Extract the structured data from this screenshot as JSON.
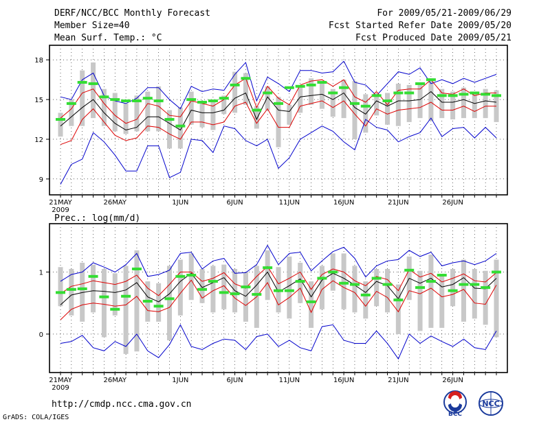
{
  "header": {
    "title": "DERF/NCC/BCC Monthly Forecast",
    "member_size": "Member Size=40",
    "variable": "Mean Surf. Temp.: °C",
    "period": "For 2009/05/21-2009/06/29",
    "started": "Fcst Started Refer Date 2009/05/20",
    "produced": "Fcst Produced Date 2009/05/21"
  },
  "footer": {
    "url": "http://cmdp.ncc.cma.gov.cn",
    "grads": "GrADS: COLA/IGES",
    "logo_bcc": "BCC",
    "logo_ncc": "NCC"
  },
  "colors": {
    "blue": "#0000cc",
    "red": "#dd0000",
    "black": "#000000",
    "box": "#c8c8c8",
    "green": "#33dd33"
  },
  "chart_data": [
    {
      "type": "line",
      "title": "Mean Surf. Temp.: °C",
      "xlabel": "",
      "ylabel": "°C",
      "xlim": [
        0,
        40
      ],
      "ylim": [
        7.8,
        19.1
      ],
      "yticks": [
        9,
        12,
        15,
        18
      ],
      "xtick_labels": [
        {
          "i": 0,
          "label": "21MAY",
          "sub": "2009"
        },
        {
          "i": 5,
          "label": "26MAY"
        },
        {
          "i": 11,
          "label": "1JUN"
        },
        {
          "i": 16,
          "label": "6JUN"
        },
        {
          "i": 21,
          "label": "11JUN"
        },
        {
          "i": 26,
          "label": "16JUN"
        },
        {
          "i": 31,
          "label": "21JUN"
        },
        {
          "i": 36,
          "label": "26JUN"
        }
      ],
      "series": [
        {
          "name": "max",
          "color": "blue",
          "values": [
            15.2,
            15.0,
            16.5,
            17.0,
            15.3,
            14.9,
            14.7,
            15.1,
            15.9,
            15.9,
            15.0,
            14.3,
            16.0,
            15.6,
            15.8,
            15.7,
            16.9,
            17.8,
            14.9,
            16.7,
            16.2,
            15.6,
            17.2,
            17.2,
            17.0,
            17.1,
            17.9,
            16.3,
            16.1,
            15.3,
            16.2,
            17.1,
            16.9,
            17.4,
            16.2,
            16.5,
            16.2,
            16.6,
            16.3,
            16.6,
            16.9
          ]
        },
        {
          "name": "upper",
          "color": "red",
          "values": [
            13.6,
            14.3,
            15.5,
            15.8,
            14.7,
            13.8,
            13.2,
            13.5,
            14.7,
            14.5,
            13.8,
            13.7,
            14.9,
            14.7,
            14.5,
            15.0,
            16.1,
            16.6,
            14.4,
            16.0,
            15.1,
            14.6,
            16.1,
            16.4,
            16.5,
            16.0,
            16.5,
            15.2,
            14.8,
            15.6,
            14.6,
            15.7,
            15.8,
            15.8,
            16.5,
            15.5,
            15.4,
            15.8,
            15.3,
            15.5,
            15.5
          ]
        },
        {
          "name": "mean",
          "color": "black",
          "values": [
            13.0,
            13.7,
            14.4,
            15.0,
            14.0,
            13.2,
            12.7,
            12.9,
            13.7,
            13.7,
            13.2,
            12.7,
            14.2,
            14.0,
            14.0,
            14.2,
            15.1,
            15.5,
            13.5,
            15.2,
            14.2,
            14.1,
            15.2,
            15.3,
            15.4,
            15.0,
            15.5,
            14.4,
            13.9,
            14.9,
            14.5,
            14.9,
            14.9,
            15.0,
            15.6,
            14.8,
            14.8,
            15.0,
            14.7,
            14.9,
            14.8
          ]
        },
        {
          "name": "lower",
          "color": "red",
          "values": [
            11.6,
            11.9,
            13.5,
            14.3,
            13.3,
            12.3,
            11.9,
            12.1,
            13.0,
            12.9,
            12.4,
            12.0,
            13.3,
            13.3,
            13.1,
            13.3,
            14.5,
            14.8,
            13.2,
            14.3,
            12.9,
            12.9,
            14.5,
            14.7,
            14.9,
            14.4,
            14.9,
            13.9,
            13.0,
            14.3,
            13.9,
            14.2,
            14.3,
            14.4,
            14.8,
            14.2,
            14.2,
            14.5,
            14.1,
            14.5,
            14.5
          ]
        },
        {
          "name": "min",
          "color": "blue",
          "values": [
            8.6,
            10.1,
            10.5,
            12.5,
            11.8,
            10.8,
            9.6,
            9.6,
            11.5,
            11.5,
            9.1,
            9.5,
            12.0,
            11.9,
            11.0,
            13.0,
            12.8,
            11.9,
            11.5,
            12.0,
            9.8,
            10.6,
            12.0,
            12.5,
            13.0,
            12.6,
            11.8,
            11.2,
            13.5,
            12.9,
            12.7,
            11.8,
            12.2,
            12.5,
            13.6,
            12.2,
            12.8,
            12.9,
            12.1,
            12.9,
            12.1
          ]
        }
      ],
      "boxes": {
        "low": [
          12.2,
          13.0,
          13.0,
          13.6,
          13.0,
          12.6,
          12.4,
          12.6,
          12.6,
          12.6,
          11.3,
          11.3,
          13.1,
          12.9,
          12.7,
          13.9,
          14.0,
          14.6,
          12.8,
          14.2,
          11.4,
          13.1,
          14.0,
          14.6,
          14.3,
          13.7,
          13.6,
          12.0,
          12.5,
          13.8,
          13.1,
          13.0,
          13.3,
          13.6,
          13.4,
          13.6,
          13.5,
          13.6,
          13.6,
          13.6,
          13.3
        ],
        "high": [
          14.0,
          15.0,
          17.2,
          17.8,
          15.8,
          15.5,
          14.7,
          15.3,
          15.6,
          16.0,
          14.2,
          14.4,
          15.6,
          14.9,
          14.9,
          15.3,
          17.1,
          17.0,
          14.5,
          16.0,
          15.2,
          14.6,
          16.0,
          16.6,
          16.3,
          15.8,
          16.5,
          16.4,
          15.4,
          15.3,
          15.5,
          16.2,
          16.1,
          16.2,
          16.6,
          15.8,
          15.6,
          15.9,
          15.5,
          15.8,
          15.7
        ]
      },
      "markers": [
        13.5,
        14.7,
        16.3,
        16.2,
        15.2,
        15.0,
        14.9,
        14.9,
        15.1,
        14.9,
        13.5,
        13.0,
        15.0,
        14.8,
        14.9,
        15.1,
        16.1,
        16.6,
        14.2,
        15.5,
        14.7,
        15.9,
        16.0,
        16.1,
        16.3,
        15.5,
        15.9,
        14.7,
        14.5,
        15.3,
        14.9,
        15.5,
        15.5,
        16.2,
        16.5,
        15.3,
        15.3,
        15.4,
        15.5,
        15.4,
        15.3
      ]
    },
    {
      "type": "line",
      "title": "Prec.: log(mm/d)",
      "xlabel": "",
      "ylabel": "log(mm/d)",
      "xlim": [
        0,
        40
      ],
      "ylim": [
        -0.62,
        1.78
      ],
      "yticks": [
        0,
        1
      ],
      "xtick_labels": [
        {
          "i": 0,
          "label": "21MAY",
          "sub": "2009"
        },
        {
          "i": 5,
          "label": "26MAY"
        },
        {
          "i": 11,
          "label": "1JUN"
        },
        {
          "i": 16,
          "label": "6JUN"
        },
        {
          "i": 21,
          "label": "11JUN"
        },
        {
          "i": 26,
          "label": "16JUN"
        },
        {
          "i": 31,
          "label": "21JUN"
        },
        {
          "i": 36,
          "label": "26JUN"
        }
      ],
      "series": [
        {
          "name": "max",
          "color": "blue",
          "values": [
            0.85,
            0.96,
            1.0,
            1.15,
            1.08,
            1.0,
            1.12,
            1.3,
            0.93,
            0.96,
            1.03,
            1.3,
            1.32,
            1.05,
            1.18,
            1.22,
            0.98,
            0.99,
            1.12,
            1.43,
            1.12,
            1.3,
            1.32,
            1.02,
            1.18,
            1.33,
            1.4,
            1.22,
            0.92,
            1.1,
            1.18,
            1.2,
            1.35,
            1.25,
            1.32,
            1.1,
            1.15,
            1.18,
            1.12,
            1.18,
            1.3
          ]
        },
        {
          "name": "upper",
          "color": "red",
          "values": [
            0.65,
            0.77,
            0.81,
            0.86,
            0.83,
            0.8,
            0.85,
            0.95,
            0.74,
            0.62,
            0.8,
            1.0,
            1.0,
            0.85,
            0.9,
            0.99,
            0.81,
            0.74,
            0.93,
            1.09,
            0.81,
            0.9,
            1.0,
            0.72,
            0.96,
            1.05,
            1.0,
            0.86,
            0.78,
            0.93,
            0.88,
            0.7,
            1.04,
            0.92,
            0.98,
            0.84,
            0.9,
            0.97,
            0.86,
            0.84,
            0.99
          ]
        },
        {
          "name": "mean",
          "color": "black",
          "values": [
            0.47,
            0.63,
            0.67,
            0.7,
            0.69,
            0.67,
            0.71,
            0.83,
            0.6,
            0.52,
            0.65,
            0.85,
            0.98,
            0.75,
            0.83,
            0.91,
            0.7,
            0.61,
            0.79,
            1.0,
            0.68,
            0.78,
            0.89,
            0.6,
            0.87,
            0.98,
            0.9,
            0.79,
            0.67,
            0.85,
            0.78,
            0.57,
            0.9,
            0.82,
            0.9,
            0.76,
            0.8,
            0.91,
            0.74,
            0.73,
            0.9
          ]
        },
        {
          "name": "lower",
          "color": "red",
          "values": [
            0.23,
            0.4,
            0.47,
            0.5,
            0.48,
            0.45,
            0.47,
            0.61,
            0.38,
            0.36,
            0.43,
            0.66,
            0.87,
            0.58,
            0.7,
            0.78,
            0.58,
            0.46,
            0.6,
            0.83,
            0.47,
            0.59,
            0.74,
            0.35,
            0.72,
            0.86,
            0.75,
            0.67,
            0.45,
            0.69,
            0.59,
            0.36,
            0.7,
            0.65,
            0.74,
            0.6,
            0.64,
            0.72,
            0.5,
            0.48,
            0.79
          ]
        },
        {
          "name": "min",
          "color": "blue",
          "values": [
            -0.15,
            -0.12,
            -0.02,
            -0.22,
            -0.27,
            -0.12,
            -0.2,
            0.0,
            -0.27,
            -0.38,
            -0.17,
            0.15,
            -0.2,
            -0.25,
            -0.15,
            -0.08,
            -0.1,
            -0.25,
            -0.04,
            0.0,
            -0.2,
            -0.1,
            -0.22,
            -0.27,
            0.12,
            0.15,
            -0.1,
            -0.15,
            -0.15,
            0.05,
            -0.15,
            -0.4,
            0.0,
            -0.15,
            -0.03,
            -0.12,
            -0.2,
            -0.08,
            -0.22,
            -0.25,
            0.05
          ]
        },
        {
          "name": "_spare",
          "color": "none",
          "values": []
        }
      ],
      "boxes": {
        "low": [
          0.45,
          0.3,
          0.2,
          0.35,
          -0.05,
          0.3,
          -0.32,
          -0.28,
          0.2,
          0.2,
          -0.1,
          0.3,
          0.55,
          0.5,
          0.35,
          0.4,
          0.35,
          0.2,
          0.1,
          0.55,
          0.35,
          0.25,
          0.5,
          0.1,
          0.4,
          0.7,
          0.4,
          0.35,
          0.25,
          0.45,
          0.35,
          0.0,
          0.55,
          0.05,
          0.1,
          0.1,
          0.45,
          0.2,
          0.25,
          0.15,
          -0.05
        ],
        "high": [
          1.08,
          1.05,
          1.15,
          1.12,
          1.05,
          0.98,
          1.1,
          1.35,
          0.85,
          0.82,
          1.1,
          1.2,
          1.3,
          1.05,
          1.1,
          1.12,
          1.05,
          1.0,
          1.1,
          1.35,
          1.08,
          1.25,
          1.15,
          0.85,
          1.1,
          1.3,
          1.3,
          1.1,
          0.85,
          1.05,
          1.05,
          0.8,
          1.25,
          1.02,
          1.28,
          0.95,
          1.05,
          1.2,
          1.05,
          1.02,
          1.2
        ]
      },
      "markers": [
        0.67,
        0.72,
        0.73,
        0.93,
        0.6,
        0.4,
        0.61,
        1.05,
        0.53,
        0.45,
        0.57,
        0.93,
        0.95,
        0.72,
        0.85,
        0.67,
        0.65,
        0.76,
        0.64,
        1.07,
        0.7,
        0.7,
        0.85,
        0.52,
        0.9,
        1.0,
        0.82,
        0.8,
        0.63,
        0.9,
        0.8,
        0.55,
        1.03,
        0.75,
        0.85,
        0.95,
        0.7,
        0.8,
        0.8,
        0.75,
        1.0
      ]
    }
  ]
}
